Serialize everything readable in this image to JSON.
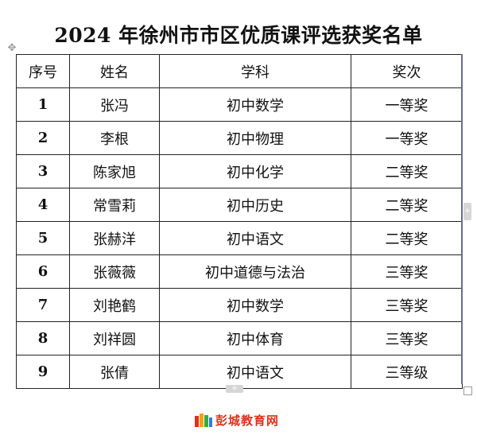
{
  "document": {
    "title": "2024 年徐州市市区优质课评选获奖名单"
  },
  "table": {
    "headers": [
      "序号",
      "姓名",
      "学科",
      "奖次"
    ],
    "rows": [
      [
        "1",
        "张冯",
        "初中数学",
        "一等奖"
      ],
      [
        "2",
        "李根",
        "初中物理",
        "一等奖"
      ],
      [
        "3",
        "陈家旭",
        "初中化学",
        "二等奖"
      ],
      [
        "4",
        "常雪莉",
        "初中历史",
        "二等奖"
      ],
      [
        "5",
        "张赫洋",
        "初中语文",
        "二等奖"
      ],
      [
        "6",
        "张薇薇",
        "初中道德与法治",
        "三等奖"
      ],
      [
        "7",
        "刘艳鹤",
        "初中数学",
        "三等奖"
      ],
      [
        "8",
        "刘祥圆",
        "初中体育",
        "三等奖"
      ],
      [
        "9",
        "张倩",
        "初中语文",
        "三等级"
      ]
    ]
  },
  "icons": {
    "move_handle": "move-icon",
    "row_add": "add-row-icon",
    "col_add": "add-column-icon",
    "resize": "resize-icon",
    "logo": "book-logo-icon"
  },
  "colors": {
    "logo_red": "#e0301e",
    "border": "#222222"
  },
  "watermark": {
    "text": "彭城教育网"
  }
}
